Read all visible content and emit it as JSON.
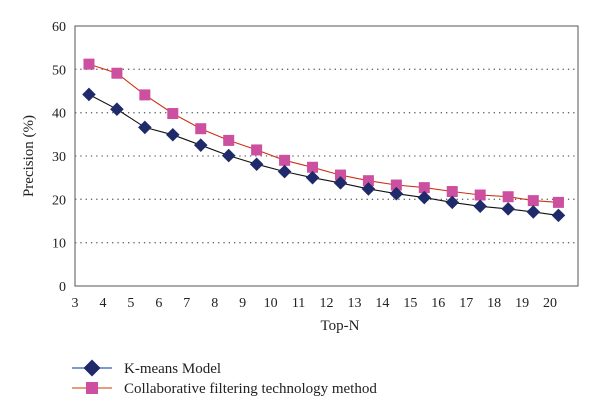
{
  "chart_data": {
    "type": "line",
    "title": "",
    "xlabel": "Top-N",
    "ylabel": "Precision (%)",
    "xlim": [
      3,
      21
    ],
    "ylim": [
      0,
      60
    ],
    "x_ticks": [
      3,
      4,
      5,
      6,
      7,
      8,
      9,
      10,
      11,
      12,
      13,
      14,
      15,
      16,
      17,
      18,
      19,
      20
    ],
    "y_ticks": [
      0,
      10,
      20,
      30,
      40,
      50,
      60
    ],
    "grid": "horizontal dotted",
    "legend_position": "bottom",
    "x": [
      3.5,
      4.5,
      5.5,
      6.5,
      7.5,
      8.5,
      9.5,
      10.5,
      11.5,
      12.5,
      13.5,
      14.5,
      15.5,
      16.5,
      17.5,
      18.5,
      19.4,
      20.3
    ],
    "series": [
      {
        "name": "K-means Model",
        "color": "#1f2a6b",
        "line_color": "#111111",
        "marker": "diamond",
        "values": [
          44.2,
          40.8,
          36.6,
          34.9,
          32.5,
          30.1,
          28.1,
          26.4,
          25.0,
          23.8,
          22.4,
          21.3,
          20.4,
          19.3,
          18.4,
          17.8,
          17.1,
          16.3
        ]
      },
      {
        "name": "Collaborative filtering technology method",
        "color": "#cc4fa0",
        "line_color": "#cc3311",
        "marker": "square",
        "values": [
          51.2,
          49.1,
          44.1,
          39.8,
          36.3,
          33.6,
          31.4,
          29.0,
          27.4,
          25.6,
          24.3,
          23.3,
          22.7,
          21.8,
          21.0,
          20.6,
          19.7,
          19.3
        ]
      }
    ]
  }
}
